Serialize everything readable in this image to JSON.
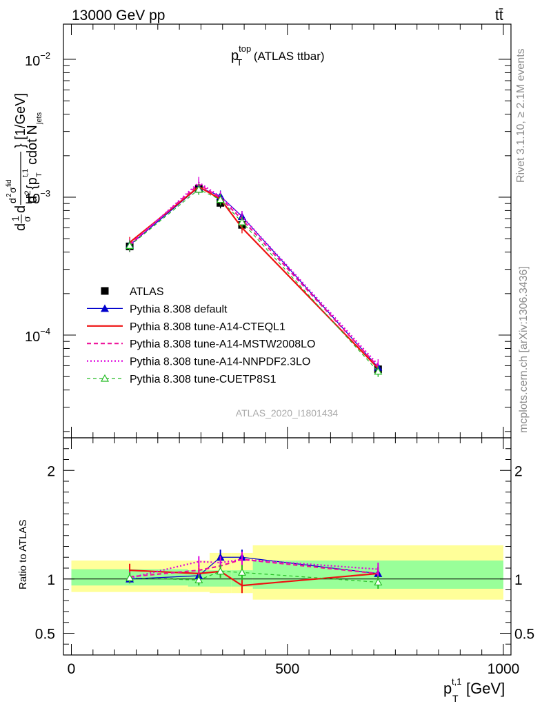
{
  "header": {
    "left": "13000 GeV pp",
    "right": "tt̄"
  },
  "side_labels": {
    "rivet": "Rivet 3.1.10, ≥ 2.1M events",
    "mcplots": "mcplots.cern.ch [arXiv:1306.3436]"
  },
  "watermark": "ATLAS_2020_I1801434",
  "colors": {
    "ATLAS": "#000000",
    "default": "#0000cc",
    "cteql1": "#ee1111",
    "mstw": "#ee1199",
    "nnpdf": "#dd00dd",
    "cuetp8s1": "#22bb22",
    "band_inner": "#99ff99",
    "band_outer": "#ffff99"
  },
  "chart_data": [
    {
      "type": "line",
      "title": "p_T^top (ATLAS ttbar)",
      "title_main": "p",
      "title_sup": "top",
      "title_sub": "T",
      "title_rest": " (ATLAS ttbar)",
      "xlabel": "p_T^{t,1} [GeV]",
      "ylabel": "d²σ^fid / d²{p_T^{t,1} cdot N_jets} [1/GeV]",
      "yscale": "log",
      "xlim": [
        -20,
        1000
      ],
      "ylim": [
        1.8e-05,
        0.018
      ],
      "yticks": [
        {
          "v": 0.0001,
          "label": "10",
          "exp": "−4"
        },
        {
          "v": 0.001,
          "label": "10",
          "exp": "−3"
        },
        {
          "v": 0.01,
          "label": "10",
          "exp": "−2"
        }
      ],
      "legend_position": "lower-left",
      "series": [
        {
          "name": "ATLAS",
          "key": "ATLAS",
          "style": "data",
          "x": [
            135,
            295,
            345,
            395,
            710
          ],
          "y": [
            0.00044,
            0.00115,
            0.00091,
            0.00063,
            5.65e-05
          ]
        },
        {
          "name": "Pythia 8.308 default",
          "key": "default",
          "style": "solid-triangle",
          "x": [
            135,
            295,
            345,
            395,
            710
          ],
          "y": [
            0.00045,
            0.00118,
            0.00102,
            0.000725,
            5.85e-05
          ]
        },
        {
          "name": "Pythia 8.308 tune-A14-CTEQL1",
          "key": "cteql1",
          "style": "solid-thick",
          "x": [
            135,
            295,
            345,
            395,
            710
          ],
          "y": [
            0.00047,
            0.00119,
            0.00097,
            0.0006,
            5.75e-05
          ]
        },
        {
          "name": "Pythia 8.308 tune-A14-MSTW2008LO",
          "key": "mstw",
          "style": "dashed",
          "x": [
            135,
            295,
            345,
            395,
            710
          ],
          "y": [
            0.000455,
            0.00124,
            0.00099,
            0.00069,
            5.9e-05
          ]
        },
        {
          "name": "Pythia 8.308 tune-A14-NNPDF2.3LO",
          "key": "nnpdf",
          "style": "dotted",
          "x": [
            135,
            295,
            345,
            395,
            710
          ],
          "y": [
            0.000445,
            0.00128,
            0.00101,
            0.000725,
            6.1e-05
          ]
        },
        {
          "name": "Pythia 8.308 tune-CUETP8S1",
          "key": "cuetp8s1",
          "style": "dashed-open-triangle",
          "x": [
            135,
            295,
            345,
            395,
            710
          ],
          "y": [
            0.000445,
            0.00114,
            0.00096,
            0.00066,
            5.45e-05
          ]
        }
      ]
    },
    {
      "type": "line",
      "title": "",
      "xlabel": "p_T^{t,1} [GeV]",
      "ylabel": "Ratio to ATLAS",
      "xlim": [
        -20,
        1000
      ],
      "ylim": [
        0.3,
        2.3
      ],
      "xticks": [
        0,
        500,
        1000
      ],
      "yticks": [
        0.5,
        1,
        2
      ],
      "bands": [
        {
          "x0": 0,
          "x1": 270,
          "inner": [
            0.94,
            1.09
          ],
          "outer": [
            0.88,
            1.17
          ]
        },
        {
          "x0": 270,
          "x1": 320,
          "inner": [
            0.93,
            1.08
          ],
          "outer": [
            0.88,
            1.17
          ]
        },
        {
          "x0": 320,
          "x1": 370,
          "inner": [
            0.93,
            1.08
          ],
          "outer": [
            0.87,
            1.24
          ]
        },
        {
          "x0": 370,
          "x1": 420,
          "inner": [
            0.93,
            1.08
          ],
          "outer": [
            0.87,
            1.24
          ]
        },
        {
          "x0": 420,
          "x1": 1000,
          "inner": [
            0.91,
            1.17
          ],
          "outer": [
            0.81,
            1.31
          ]
        }
      ],
      "series": [
        {
          "name": "Pythia 8.308 default",
          "key": "default",
          "style": "solid-triangle",
          "x": [
            135,
            295,
            345,
            395,
            710
          ],
          "y": [
            1.0,
            1.03,
            1.2,
            1.2,
            1.05
          ],
          "err": [
            0.04,
            0.05,
            0.07,
            0.07,
            0.06
          ]
        },
        {
          "name": "Pythia 8.308 tune-A14-CTEQL1",
          "key": "cteql1",
          "style": "solid-thick",
          "x": [
            135,
            295,
            345,
            395,
            710
          ],
          "y": [
            1.08,
            1.05,
            1.07,
            0.94,
            1.05
          ],
          "err": [
            0.06,
            0.05,
            0.05,
            0.07,
            0.06
          ]
        },
        {
          "name": "Pythia 8.308 tune-A14-MSTW2008LO",
          "key": "mstw",
          "style": "dashed",
          "x": [
            135,
            295,
            345,
            395,
            710
          ],
          "y": [
            1.02,
            1.08,
            1.12,
            1.18,
            1.05
          ],
          "err": [
            0.05,
            0.05,
            0.06,
            0.07,
            0.06
          ]
        },
        {
          "name": "Pythia 8.308 tune-A14-NNPDF2.3LO",
          "key": "nnpdf",
          "style": "dotted",
          "x": [
            135,
            295,
            345,
            395,
            710
          ],
          "y": [
            1.01,
            1.16,
            1.15,
            1.18,
            1.09
          ],
          "err": [
            0.05,
            0.05,
            0.06,
            0.07,
            0.06
          ]
        },
        {
          "name": "Pythia 8.308 tune-CUETP8S1",
          "key": "cuetp8s1",
          "style": "dashed-open-triangle",
          "x": [
            135,
            295,
            345,
            395,
            710
          ],
          "y": [
            1.01,
            0.99,
            1.07,
            1.06,
            0.97
          ],
          "err": [
            0.05,
            0.05,
            0.06,
            0.07,
            0.06
          ]
        }
      ]
    }
  ]
}
